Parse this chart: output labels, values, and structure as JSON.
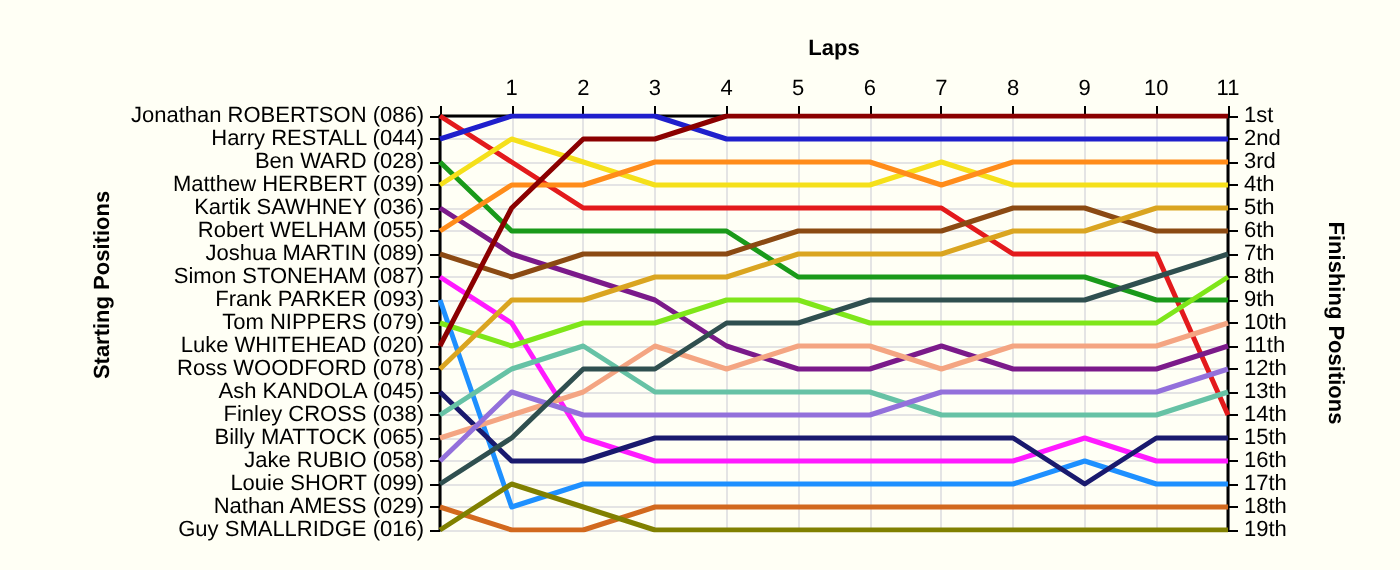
{
  "chart_data": {
    "type": "line",
    "xlabel": "Laps",
    "annotations": [
      "Starting Positions"
    ],
    "y2label": "Finishing Positions",
    "marker": "none",
    "grid": true,
    "x": [
      0,
      1,
      2,
      3,
      4,
      5,
      6,
      7,
      8,
      9,
      10,
      11
    ],
    "xlim": [
      0,
      11
    ],
    "xticks": [
      {
        "value": 0,
        "label": null
      },
      1,
      2,
      3,
      4,
      5,
      6,
      7,
      8,
      9,
      10,
      11
    ],
    "y_categories": [
      "Jonathan ROBERTSON (086)",
      "Harry RESTALL (044)",
      "Ben WARD (028)",
      "Matthew HERBERT (039)",
      "Kartik SAWHNEY (036)",
      "Robert WELHAM (055)",
      "Joshua MARTIN (089)",
      "Simon STONEHAM (087)",
      "Frank PARKER (093)",
      "Tom NIPPERS (079)",
      "Luke WHITEHEAD (020)",
      "Ross WOODFORD (078)",
      "Ash KANDOLA (045)",
      "Finley CROSS (038)",
      "Billy MATTOCK (065)",
      "Jake RUBIO (058)",
      "Louie SHORT (099)",
      "Nathan AMESS (029)",
      "Guy SMALLRIDGE (016)"
    ],
    "y2lim": [
      19,
      1
    ],
    "y2ticks": [
      {
        "value": 1,
        "label": "1st"
      },
      {
        "value": 2,
        "label": "2nd"
      },
      {
        "value": 3,
        "label": "3rd"
      },
      {
        "value": 4,
        "label": "4th"
      },
      {
        "value": 5,
        "label": "5th"
      },
      {
        "value": 6,
        "label": "6th"
      },
      {
        "value": 7,
        "label": "7th"
      },
      {
        "value": 8,
        "label": "8th"
      },
      {
        "value": 9,
        "label": "9th"
      },
      {
        "value": 10,
        "label": "10th"
      },
      {
        "value": 11,
        "label": "11th"
      },
      {
        "value": 12,
        "label": "12th"
      },
      {
        "value": 13,
        "label": "13th"
      },
      {
        "value": 14,
        "label": "14th"
      },
      {
        "value": 15,
        "label": "15th"
      },
      {
        "value": 16,
        "label": "16th"
      },
      {
        "value": 17,
        "label": "17th"
      },
      {
        "value": 18,
        "label": "18th"
      },
      {
        "value": 19,
        "label": "19th"
      }
    ],
    "series": [
      {
        "axis": "y2",
        "color": "#e31a1c",
        "values": [
          1,
          3,
          5,
          5,
          5,
          5,
          5,
          5,
          7,
          7,
          7,
          14
        ]
      },
      {
        "axis": "y2",
        "color": "#1f1fcc",
        "values": [
          2,
          1,
          1,
          1,
          2,
          2,
          2,
          2,
          2,
          2,
          2,
          2
        ]
      },
      {
        "axis": "y2",
        "color": "#1a9a1a",
        "values": [
          3,
          6,
          6,
          6,
          6,
          8,
          8,
          8,
          8,
          8,
          9,
          9
        ]
      },
      {
        "axis": "y2",
        "color": "#f5e01a",
        "values": [
          4,
          2,
          3,
          4,
          4,
          4,
          4,
          3,
          4,
          4,
          4,
          4
        ]
      },
      {
        "axis": "y2",
        "color": "#7b1a8a",
        "values": [
          5,
          7,
          8,
          9,
          11,
          12,
          12,
          11,
          12,
          12,
          12,
          11
        ]
      },
      {
        "axis": "y2",
        "color": "#ff8c1a",
        "values": [
          6,
          4,
          4,
          3,
          3,
          3,
          3,
          4,
          3,
          3,
          3,
          3
        ]
      },
      {
        "axis": "y2",
        "color": "#8b4a13",
        "values": [
          7,
          8,
          7,
          7,
          7,
          6,
          6,
          6,
          5,
          5,
          6,
          6
        ]
      },
      {
        "axis": "y2",
        "color": "#ff1aff",
        "values": [
          8,
          10,
          15,
          16,
          16,
          16,
          16,
          16,
          16,
          15,
          16,
          16
        ]
      },
      {
        "axis": "y2",
        "color": "#1e90ff",
        "values": [
          9,
          18,
          17,
          17,
          17,
          17,
          17,
          17,
          17,
          16,
          17,
          17
        ]
      },
      {
        "axis": "y2",
        "color": "#7fe61a",
        "values": [
          10,
          11,
          10,
          10,
          9,
          9,
          10,
          10,
          10,
          10,
          10,
          8
        ]
      },
      {
        "axis": "y2",
        "color": "#8b0000",
        "values": [
          11,
          5,
          2,
          2,
          1,
          1,
          1,
          1,
          1,
          1,
          1,
          1
        ]
      },
      {
        "axis": "y2",
        "color": "#daa520",
        "values": [
          12,
          9,
          9,
          8,
          8,
          7,
          7,
          7,
          6,
          6,
          5,
          5
        ]
      },
      {
        "axis": "y2",
        "color": "#1a1a6e",
        "values": [
          13,
          16,
          16,
          15,
          15,
          15,
          15,
          15,
          15,
          17,
          15,
          15
        ]
      },
      {
        "axis": "y2",
        "color": "#66c2a5",
        "values": [
          14,
          12,
          11,
          13,
          13,
          13,
          13,
          14,
          14,
          14,
          14,
          13
        ]
      },
      {
        "axis": "y2",
        "color": "#f4a582",
        "values": [
          15,
          14,
          13,
          11,
          12,
          11,
          11,
          12,
          11,
          11,
          11,
          10
        ]
      },
      {
        "axis": "y2",
        "color": "#9370db",
        "values": [
          16,
          13,
          14,
          14,
          14,
          14,
          14,
          13,
          13,
          13,
          13,
          12
        ]
      },
      {
        "axis": "y2",
        "color": "#2f4f4f",
        "values": [
          17,
          15,
          12,
          12,
          10,
          10,
          9,
          9,
          9,
          9,
          8,
          7
        ]
      },
      {
        "axis": "y2",
        "color": "#d2691e",
        "values": [
          18,
          19,
          19,
          18,
          18,
          18,
          18,
          18,
          18,
          18,
          18,
          18
        ]
      },
      {
        "axis": "y2",
        "color": "#808000",
        "values": [
          19,
          17,
          18,
          19,
          19,
          19,
          19,
          19,
          19,
          19,
          19,
          19
        ]
      }
    ]
  }
}
